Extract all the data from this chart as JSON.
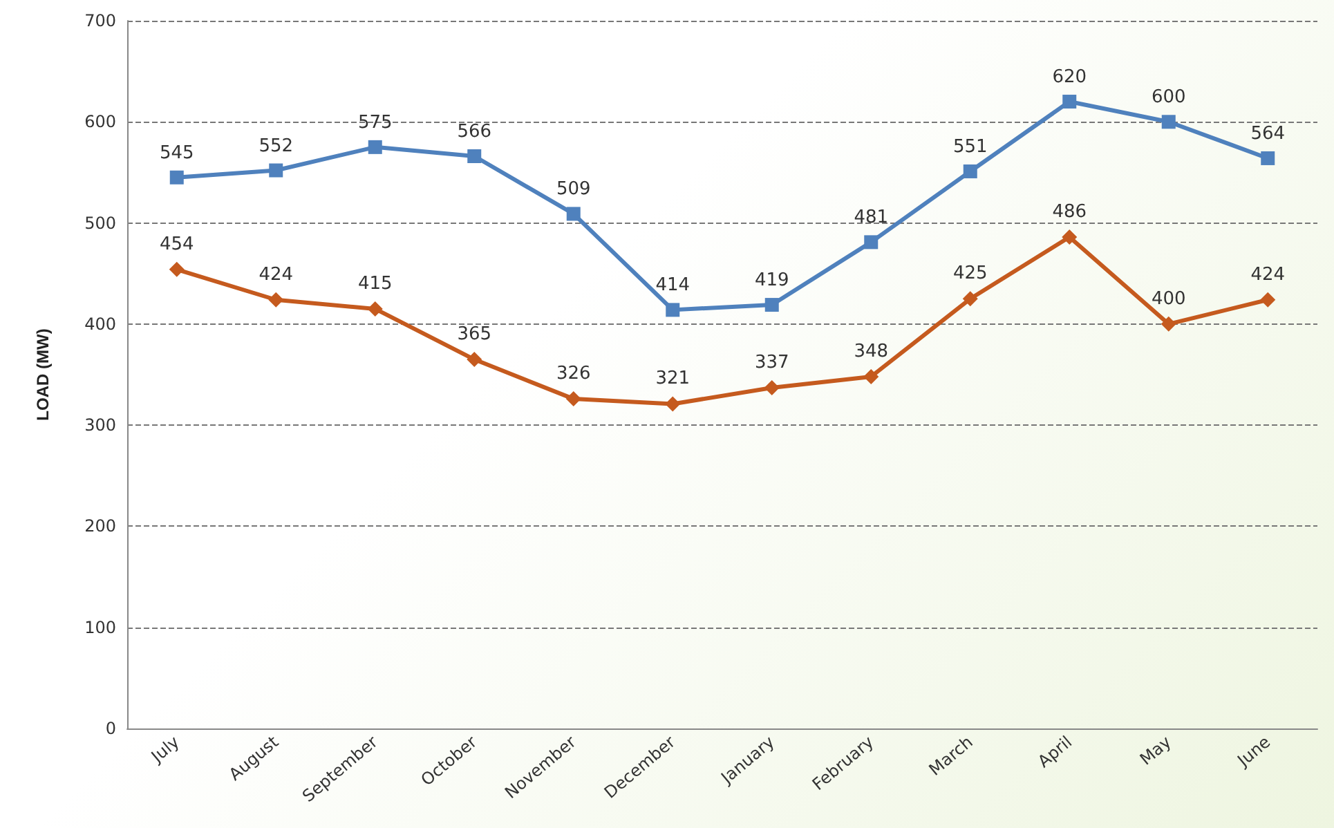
{
  "chart_data": {
    "type": "line",
    "ylabel": "LOAD (MW)",
    "categories": [
      "July",
      "August",
      "September",
      "October",
      "November",
      "December",
      "January",
      "February",
      "March",
      "April",
      "May",
      "June"
    ],
    "series": [
      {
        "color": "#4f81bd",
        "marker": "square",
        "values": [
          545,
          552,
          575,
          566,
          509,
          414,
          419,
          481,
          551,
          620,
          600,
          564
        ]
      },
      {
        "color": "#c55a1e",
        "marker": "diamond",
        "values": [
          454,
          424,
          415,
          365,
          326,
          321,
          337,
          348,
          425,
          486,
          400,
          424
        ]
      }
    ],
    "ylim": [
      0,
      700
    ],
    "yticks": [
      0,
      100,
      200,
      300,
      400,
      500,
      600,
      700
    ],
    "grid": "y",
    "data_labels": true,
    "line_style": "solid"
  }
}
